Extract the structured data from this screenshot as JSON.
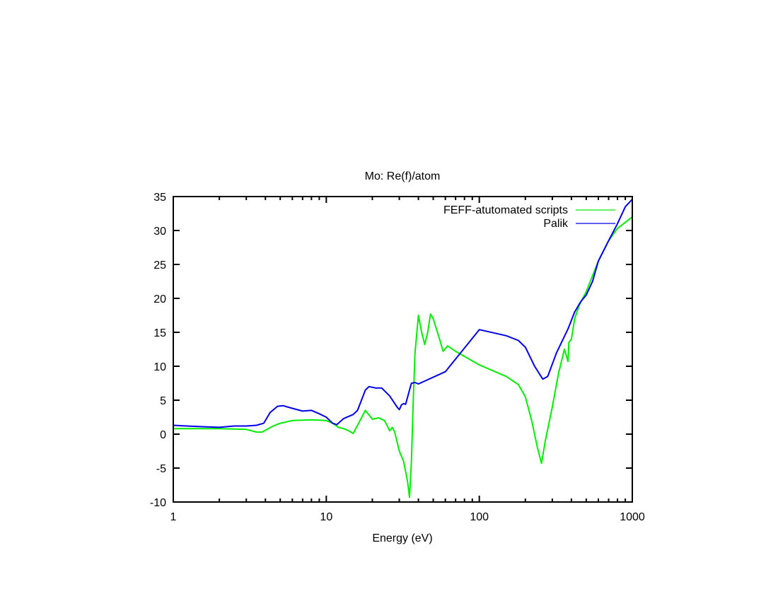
{
  "chart_data": {
    "type": "line",
    "title": "Mo: Re(f)/atom",
    "xlabel": "Energy (eV)",
    "ylabel": "",
    "xscale": "log",
    "xlim": [
      1,
      1000
    ],
    "ylim": [
      -10,
      35
    ],
    "xticks": [
      1,
      10,
      100,
      1000
    ],
    "xtick_labels": [
      "1",
      "10",
      "100",
      "1000"
    ],
    "yticks": [
      -10,
      -5,
      0,
      5,
      10,
      15,
      20,
      25,
      30,
      35
    ],
    "ytick_labels": [
      "-10",
      "-5",
      "0",
      "5",
      "10",
      "15",
      "20",
      "25",
      "30",
      "35"
    ],
    "grid": false,
    "legend_position": "top-right",
    "series": [
      {
        "name": "FEFF-atutomated scripts",
        "color": "#00ee00",
        "x": [
          1,
          2,
          3,
          3.5,
          3.8,
          4.5,
          5,
          6,
          8,
          10,
          11,
          12,
          13,
          14,
          15,
          16,
          18,
          20,
          22,
          24,
          26,
          27,
          28,
          30,
          32,
          34,
          35,
          36,
          37,
          38,
          40,
          42,
          44,
          46,
          48,
          50,
          55,
          58,
          62,
          70,
          100,
          150,
          180,
          200,
          220,
          240,
          255,
          270,
          300,
          330,
          360,
          375,
          380,
          385,
          400,
          420,
          450,
          500,
          600,
          700,
          800,
          1000
        ],
        "y": [
          0.8,
          0.8,
          0.7,
          0.3,
          0.3,
          1.2,
          1.6,
          2.0,
          2.1,
          2.0,
          1.6,
          1.0,
          0.8,
          0.5,
          0.1,
          1.3,
          3.5,
          2.2,
          2.4,
          2.0,
          0.5,
          1.0,
          0.3,
          -2.5,
          -4,
          -7,
          -9.3,
          -4,
          5,
          12,
          17.5,
          15,
          13.2,
          15,
          17.7,
          17,
          14,
          12.2,
          13,
          12.2,
          10.2,
          8.5,
          7.3,
          5.5,
          2,
          -2,
          -4.3,
          -1,
          4,
          9,
          12.5,
          11.2,
          10.7,
          13.5,
          14,
          17,
          19,
          21,
          25.5,
          28.5,
          30.3,
          32
        ]
      },
      {
        "name": "Palik",
        "color": "#0000ee",
        "x": [
          1,
          1.5,
          2,
          2.5,
          3,
          3.5,
          3.9,
          4.3,
          4.8,
          5.2,
          6,
          7,
          8,
          9,
          10,
          11,
          11.7,
          13,
          15,
          16,
          18,
          19,
          21,
          23,
          26,
          29,
          30,
          31,
          32,
          33,
          35,
          36,
          38,
          40,
          60,
          100,
          150,
          180,
          200,
          230,
          260,
          280,
          320,
          380,
          420,
          460,
          500,
          550,
          600,
          700,
          800,
          900,
          1000
        ],
        "y": [
          1.3,
          1.1,
          1.0,
          1.2,
          1.2,
          1.3,
          1.6,
          3.2,
          4.1,
          4.2,
          3.8,
          3.4,
          3.5,
          3.0,
          2.5,
          1.6,
          1.4,
          2.3,
          2.9,
          3.5,
          6.5,
          7.0,
          6.8,
          6.8,
          5.6,
          4.0,
          3.6,
          4.3,
          4.5,
          4.4,
          6.5,
          7.5,
          7.6,
          7.4,
          9.2,
          15.4,
          14.5,
          13.8,
          12.8,
          10.0,
          8.1,
          8.5,
          12,
          15.5,
          18,
          19.5,
          20.5,
          22.5,
          25.5,
          28.5,
          31,
          33.5,
          34.6
        ]
      }
    ]
  }
}
